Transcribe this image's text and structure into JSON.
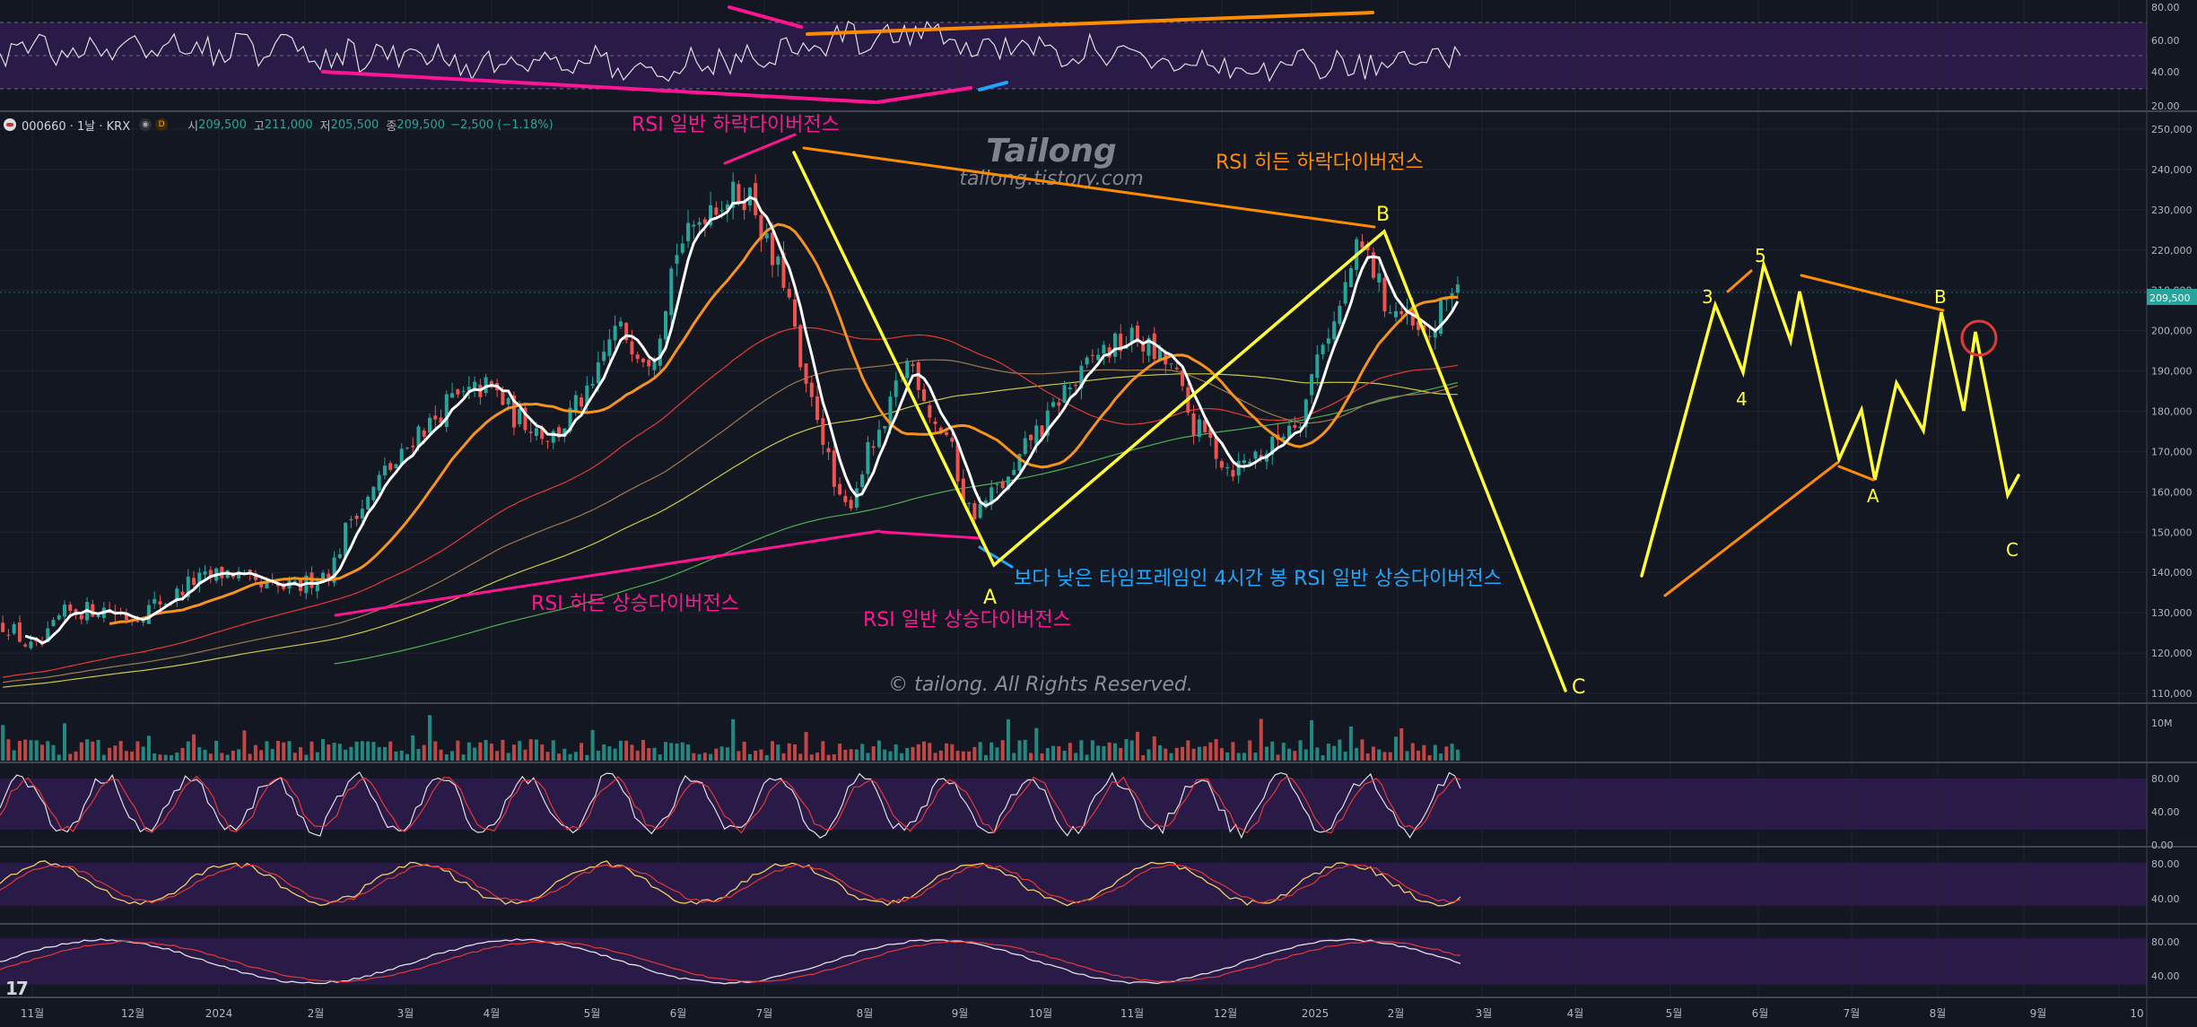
{
  "header": {
    "symbol": "000660 · 1날 · KRX",
    "open_label": "시",
    "open": "209,500",
    "high_label": "고",
    "high": "211,000",
    "low_label": "저",
    "low": "205,500",
    "close_label": "종",
    "close": "209,500",
    "change": "−2,500 (−1.18%)",
    "btn1": "D"
  },
  "watermark": {
    "title": "Tailong",
    "url": "tailong.tistory.com",
    "copyright": "© tailong. All Rights Reserved."
  },
  "colors": {
    "up": "#26a69a",
    "down": "#ef5350",
    "bg": "#131722",
    "pink": "#ff1493",
    "orange": "#ff8c00",
    "yellow": "#ffff33",
    "blue": "#1ea7ff"
  },
  "chart_data": {
    "type": "candlestick",
    "price_axis": {
      "range": [
        108000,
        254000
      ],
      "ticks": [
        "250,000",
        "240,000",
        "230,000",
        "220,000",
        "210,000",
        "200,000",
        "190,000",
        "180,000",
        "170,000",
        "160,000",
        "150,000",
        "140,000",
        "130,000",
        "120,000",
        "110,000"
      ],
      "last_price": "209,500"
    },
    "time_axis": [
      "11월",
      "12월",
      "2024",
      "2월",
      "3월",
      "4월",
      "5월",
      "6월",
      "7월",
      "8월",
      "9월",
      "10월",
      "11월",
      "12월",
      "2025",
      "2월",
      "3월",
      "4월",
      "5월",
      "6월",
      "7월",
      "8월",
      "9월",
      "10"
    ],
    "close_path": [
      [
        0,
        127000
      ],
      [
        1,
        121000
      ],
      [
        2,
        130000
      ],
      [
        3,
        131000
      ],
      [
        4,
        129000
      ],
      [
        5,
        133000
      ],
      [
        6,
        138000
      ],
      [
        7,
        140000
      ],
      [
        8,
        136000
      ],
      [
        9,
        136000
      ],
      [
        10,
        140000
      ],
      [
        11,
        156000
      ],
      [
        12,
        166000
      ],
      [
        13,
        176000
      ],
      [
        14,
        183000
      ],
      [
        15,
        186000
      ],
      [
        16,
        178000
      ],
      [
        17,
        174000
      ],
      [
        18,
        183000
      ],
      [
        19,
        200000
      ],
      [
        20,
        194000
      ],
      [
        21,
        222000
      ],
      [
        22,
        232000
      ],
      [
        23,
        234000
      ],
      [
        24,
        215000
      ],
      [
        25,
        182000
      ],
      [
        26,
        156000
      ],
      [
        27,
        172000
      ],
      [
        28,
        192000
      ],
      [
        29,
        176000
      ],
      [
        30,
        155000
      ],
      [
        31,
        162000
      ],
      [
        32,
        175000
      ],
      [
        33,
        186000
      ],
      [
        34,
        195000
      ],
      [
        35,
        198000
      ],
      [
        36,
        192000
      ],
      [
        37,
        175000
      ],
      [
        38,
        166000
      ],
      [
        39,
        170000
      ],
      [
        40,
        178000
      ],
      [
        41,
        200000
      ],
      [
        42,
        220000
      ],
      [
        43,
        205000
      ],
      [
        44,
        198000
      ],
      [
        45,
        212000
      ]
    ],
    "indicator_panels": [
      {
        "name": "rsi-top",
        "ticks": [
          "80.00",
          "60.00",
          "40.00",
          "20.00"
        ]
      },
      {
        "name": "volume",
        "ticks": [
          "10M"
        ]
      },
      {
        "name": "stochastic",
        "ticks": [
          "80.00",
          "40.00",
          "0.00"
        ]
      },
      {
        "name": "stoch-rsi",
        "ticks": [
          "80.00",
          "40.00"
        ]
      },
      {
        "name": "macd-like",
        "ticks": [
          "80.00",
          "40.00"
        ]
      }
    ],
    "annotations": {
      "rsi_regular_bearish": "RSI 일반 하락다이버전스",
      "rsi_hidden_bearish": "RSI 히든 하락다이버전스",
      "rsi_hidden_bullish": "RSI 히든 상승다이버전스",
      "rsi_regular_bullish": "RSI 일반 상승다이버전스",
      "lower_tf_bullish": "보다 낮은 타임프레임인 4시간 봉 RSI 일반 상승다이버전스",
      "wave_A": "A",
      "wave_B": "B",
      "wave_C": "C",
      "side_3": "3",
      "side_4": "4",
      "side_5": "5",
      "side_A": "A",
      "side_B": "B",
      "side_C": "C"
    }
  }
}
